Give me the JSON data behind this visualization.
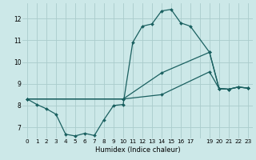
{
  "background_color": "#cce8e8",
  "grid_color": "#aacccc",
  "line_color": "#1a6060",
  "xlabel": "Humidex (Indice chaleur)",
  "xlim": [
    -0.5,
    23.5
  ],
  "ylim": [
    6.5,
    12.7
  ],
  "xtick_labels": [
    "0",
    "1",
    "2",
    "3",
    "4",
    "5",
    "6",
    "7",
    "8",
    "9",
    "10",
    "11",
    "12",
    "13",
    "14",
    "15",
    "16",
    "17",
    "",
    "19",
    "20",
    "21",
    "22",
    "23"
  ],
  "xtick_positions": [
    0,
    1,
    2,
    3,
    4,
    5,
    6,
    7,
    8,
    9,
    10,
    11,
    12,
    13,
    14,
    15,
    16,
    17,
    18,
    19,
    20,
    21,
    22,
    23
  ],
  "yticks": [
    7,
    8,
    9,
    10,
    11,
    12
  ],
  "line1_x": [
    0,
    1,
    2,
    3,
    4,
    5,
    6,
    7,
    8,
    9,
    10,
    11,
    12,
    13,
    14,
    15,
    16,
    17,
    19,
    20,
    21,
    22,
    23
  ],
  "line1_y": [
    8.3,
    8.05,
    7.85,
    7.6,
    6.68,
    6.6,
    6.72,
    6.62,
    7.35,
    8.0,
    8.05,
    10.9,
    11.65,
    11.75,
    12.35,
    12.42,
    11.8,
    11.65,
    10.45,
    8.78,
    8.75,
    8.85,
    8.8
  ],
  "line2_x": [
    0,
    10,
    14,
    19,
    20,
    21,
    22,
    23
  ],
  "line2_y": [
    8.3,
    8.3,
    9.5,
    10.45,
    8.78,
    8.75,
    8.85,
    8.8
  ],
  "line3_x": [
    0,
    10,
    14,
    19,
    20,
    21,
    22,
    23
  ],
  "line3_y": [
    8.3,
    8.3,
    8.5,
    9.55,
    8.78,
    8.75,
    8.85,
    8.8
  ]
}
